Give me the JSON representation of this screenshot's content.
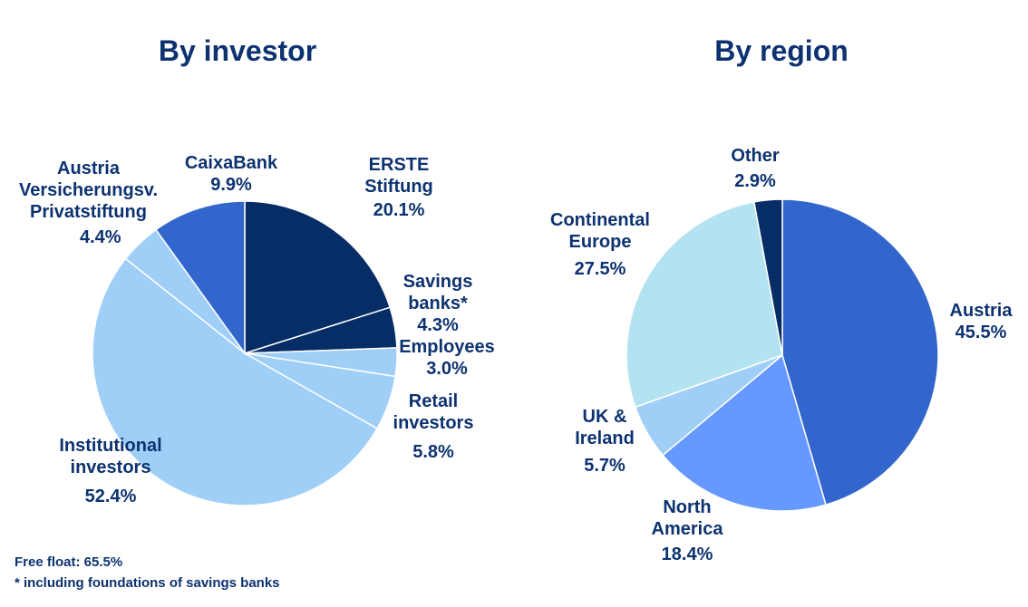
{
  "chart_data": [
    {
      "type": "pie",
      "title": "By investor",
      "slices": [
        {
          "label": "ERSTE Stiftung",
          "value": 20.1,
          "value_label": "20.1%",
          "color": "#062d66"
        },
        {
          "label": "Savings banks*",
          "value": 4.3,
          "value_label": "4.3%",
          "color": "#062d66"
        },
        {
          "label": "Employees",
          "value": 3.0,
          "value_label": "3.0%",
          "color": "#9fcef7"
        },
        {
          "label": "Retail investors",
          "value": 5.8,
          "value_label": "5.8%",
          "color": "#9fcef7"
        },
        {
          "label": "Institutional investors",
          "value": 52.4,
          "value_label": "52.4%",
          "color": "#9fcef7"
        },
        {
          "label": "Austria Versicherungsv. Privatstiftung",
          "value": 4.4,
          "value_label": "4.4%",
          "color": "#9fcef7"
        },
        {
          "label": "CaixaBank",
          "value": 9.9,
          "value_label": "9.9%",
          "color": "#3366cc"
        }
      ]
    },
    {
      "type": "pie",
      "title": "By region",
      "slices": [
        {
          "label": "Austria",
          "value": 45.5,
          "value_label": "45.5%",
          "color": "#3366cc"
        },
        {
          "label": "North America",
          "value": 18.4,
          "value_label": "18.4%",
          "color": "#6699ff"
        },
        {
          "label": "UK & Ireland",
          "value": 5.7,
          "value_label": "5.7%",
          "color": "#9fcef7"
        },
        {
          "label": "Continental Europe",
          "value": 27.5,
          "value_label": "27.5%",
          "color": "#b3e3f0"
        },
        {
          "label": "Other",
          "value": 2.9,
          "value_label": "2.9%",
          "color": "#062d66"
        }
      ]
    }
  ],
  "footnotes": {
    "free_float": "Free float: 65.5%",
    "savings_note": "* including foundations of savings banks"
  }
}
